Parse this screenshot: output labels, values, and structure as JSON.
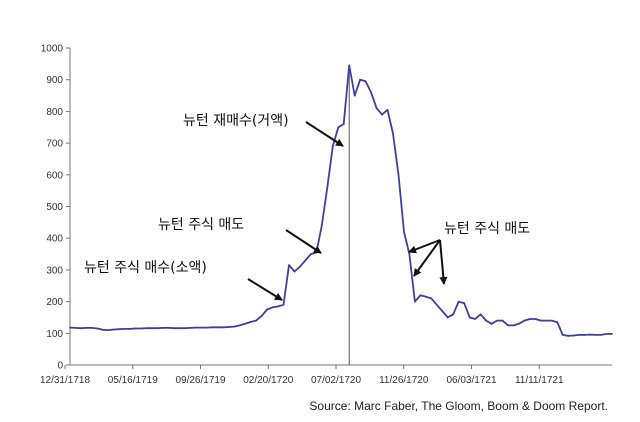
{
  "chart_data": {
    "type": "line",
    "title": "",
    "xlabel": "",
    "ylabel": "",
    "ylim": [
      0,
      1000
    ],
    "y_ticks": [
      0,
      100,
      200,
      300,
      400,
      500,
      600,
      700,
      800,
      900,
      1000
    ],
    "x_tick_labels": [
      "12/31/1718",
      "05/16/1719",
      "09/26/1719",
      "02/20/1720",
      "07/02/1720",
      "11/26/1720",
      "06/03/1721",
      "11/11/1721"
    ],
    "grid": false,
    "series": [
      {
        "name": "",
        "color": "#3f3f9f",
        "values": [
          118,
          117,
          116,
          117,
          117,
          115,
          111,
          110,
          112,
          113,
          114,
          114,
          115,
          115,
          116,
          116,
          116,
          117,
          117,
          116,
          116,
          116,
          117,
          118,
          118,
          118,
          119,
          119,
          119,
          120,
          121,
          125,
          130,
          136,
          140,
          155,
          175,
          182,
          185,
          190,
          315,
          295,
          310,
          330,
          350,
          355,
          440,
          560,
          690,
          750,
          760,
          945,
          850,
          900,
          895,
          860,
          810,
          790,
          805,
          730,
          600,
          420,
          350,
          200,
          220,
          215,
          210,
          190,
          170,
          150,
          160,
          200,
          195,
          150,
          145,
          160,
          140,
          130,
          140,
          140,
          125,
          125,
          130,
          140,
          145,
          145,
          140,
          140,
          140,
          135,
          95,
          92,
          93,
          95,
          95,
          96,
          95,
          95,
          98,
          98
        ]
      }
    ],
    "vertical_marker_index": 51,
    "annotations": [
      {
        "text": "뉴턴 재매수(거액)"
      },
      {
        "text": "뉴턴 주식 매도"
      },
      {
        "text": "뉴턴 주식 매수(소액)"
      },
      {
        "text": "뉴턴 주식 매도"
      }
    ],
    "source": "Source: Marc Faber, The Gloom, Boom & Doom Report."
  }
}
